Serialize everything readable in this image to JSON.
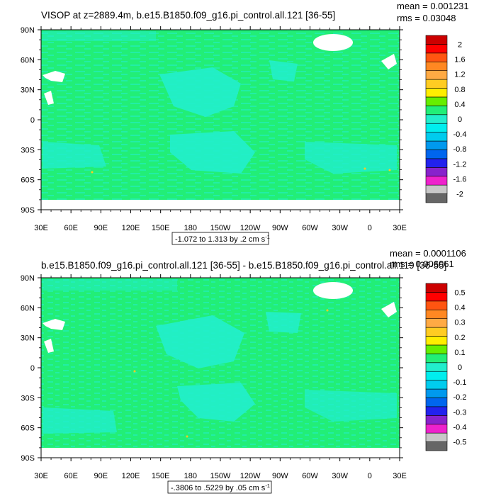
{
  "colors": {
    "ocean_main": "#22ee77",
    "ocean_light": "#22eecc",
    "land": "#ffffff",
    "frame": "#000000",
    "scale": [
      "#666666",
      "#c8c8c8",
      "#ee22cc",
      "#8822cc",
      "#2222ee",
      "#0066ee",
      "#0099ee",
      "#00ccee",
      "#00eeee",
      "#22eecc",
      "#22ee77",
      "#66ee00",
      "#ffee00",
      "#ffcc22",
      "#ffaa44",
      "#ff8822",
      "#ff5511",
      "#ff0000",
      "#cc0000"
    ]
  },
  "chart_data": [
    {
      "type": "heatmap",
      "title": "VISOP at z=2889.4m, b.e15.B1850.f09_g16.pi_control.all.121 [36-55]",
      "stats": {
        "mean": "mean = 0.001231",
        "rms": "rms = 0.03048"
      },
      "xlabel": "",
      "ylabel": "",
      "xticks": [
        "30E",
        "60E",
        "90E",
        "120E",
        "150E",
        "180",
        "150W",
        "120W",
        "90W",
        "60W",
        "30W",
        "0",
        "30E"
      ],
      "yticks": [
        "90N",
        "60N",
        "30N",
        "0",
        "30S",
        "60S",
        "90S"
      ],
      "colorbar_labels": [
        "2",
        "1.6",
        "1.2",
        "0.8",
        "0.4",
        "0",
        "-0.4",
        "-0.8",
        "-1.2",
        "-1.6",
        "-2"
      ],
      "colorbar_range": [
        -2,
        2
      ],
      "range_note": "-1.072 to 1.313 by .2 cm s",
      "range_note_sup": "-1",
      "field_range": [
        -1.072,
        1.313
      ]
    },
    {
      "type": "heatmap",
      "title": "b.e15.B1850.f09_g16.pi_control.all.121 [36-55] - b.e15.B1850.f09_g16.pi_control.all.119 [36-55]",
      "stats": {
        "mean": "mean = 0.0001106",
        "rms": "rms = 0.006061"
      },
      "xlabel": "",
      "ylabel": "",
      "xticks": [
        "30E",
        "60E",
        "90E",
        "120E",
        "150E",
        "180",
        "150W",
        "120W",
        "90W",
        "60W",
        "30W",
        "0",
        "30E"
      ],
      "yticks": [
        "90N",
        "60N",
        "30N",
        "0",
        "30S",
        "60S",
        "90S"
      ],
      "colorbar_labels": [
        "0.5",
        "0.4",
        "0.3",
        "0.2",
        "0.1",
        "0",
        "-0.1",
        "-0.2",
        "-0.3",
        "-0.4",
        "-0.5"
      ],
      "colorbar_range": [
        -0.5,
        0.5
      ],
      "range_note": "-.3806 to .5229 by .05 cm s",
      "range_note_sup": "-1",
      "field_range": [
        -0.3806,
        0.5229
      ]
    }
  ]
}
